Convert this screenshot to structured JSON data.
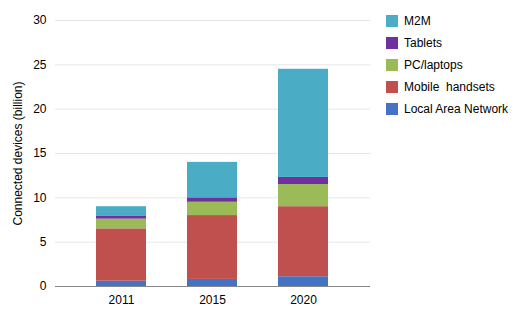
{
  "chart_data": {
    "type": "bar",
    "stacked": true,
    "categories": [
      "2011",
      "2015",
      "2020"
    ],
    "series": [
      {
        "name": "Local Area Network",
        "color": "#4472C4",
        "values": [
          0.6,
          0.8,
          1.1
        ]
      },
      {
        "name": "Mobile  handsets",
        "color": "#C0504D",
        "values": [
          5.9,
          7.2,
          7.9
        ]
      },
      {
        "name": "PC/laptops",
        "color": "#9BBB59",
        "values": [
          1.1,
          1.5,
          2.5
        ]
      },
      {
        "name": "Tablets",
        "color": "#7030A0",
        "values": [
          0.3,
          0.5,
          0.8
        ]
      },
      {
        "name": "M2M",
        "color": "#4BACC6",
        "values": [
          1.1,
          4.0,
          12.2
        ]
      }
    ],
    "ylabel": "Connected devices (billion)",
    "ylim": [
      0,
      30
    ],
    "yticks": [
      0,
      5,
      10,
      15,
      20,
      25,
      30
    ],
    "grid": true,
    "legend": "right"
  }
}
